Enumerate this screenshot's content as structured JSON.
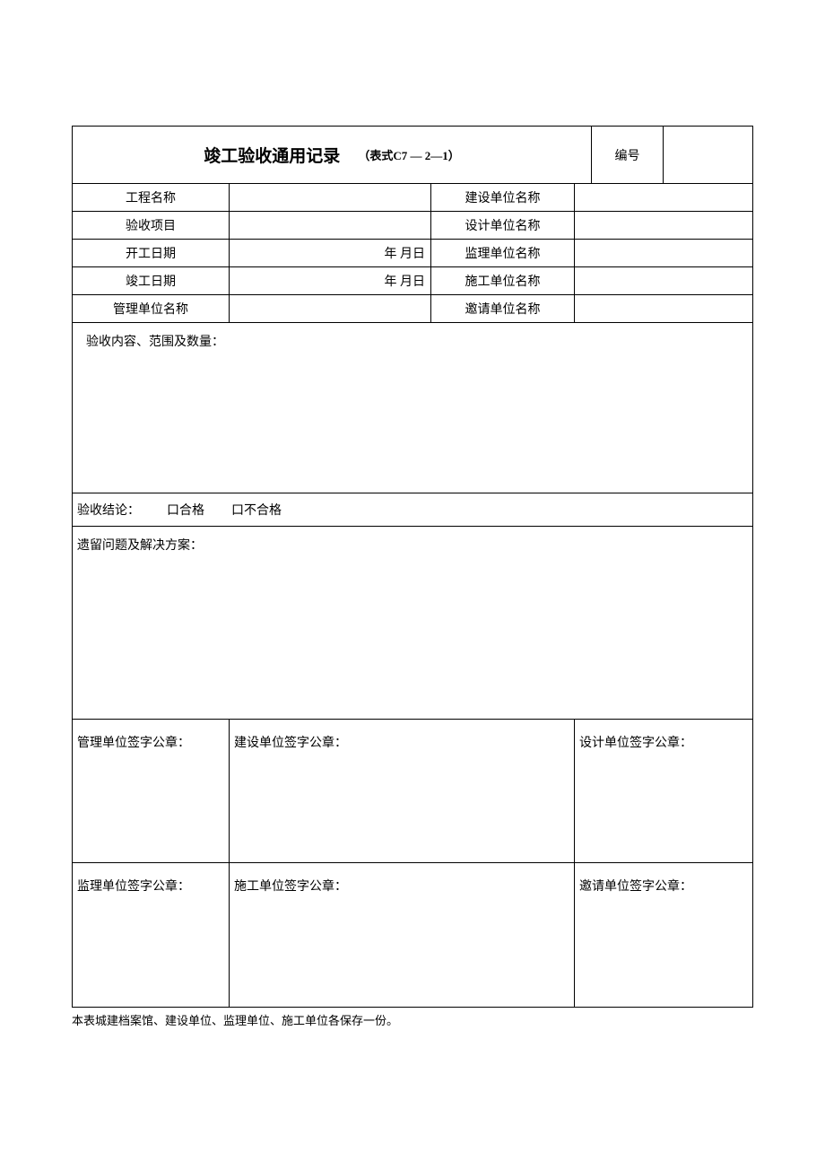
{
  "header": {
    "title_main": "竣工验收通用记录",
    "title_sub": "（表式C7 — 2—1）",
    "bianhao_label": "编号",
    "bianhao_value": ""
  },
  "info_rows": {
    "row1": {
      "label1": "工程名称",
      "value1": "",
      "label2": "建设单位名称",
      "value2": ""
    },
    "row2": {
      "label1": "验收项目",
      "value1": "",
      "label2": "设计单位名称",
      "value2": ""
    },
    "row3": {
      "label1": "开工日期",
      "value1": "年 月日",
      "label2": "监理单位名称",
      "value2": ""
    },
    "row4": {
      "label1": "竣工日期",
      "value1": "年 月日",
      "label2": "施工单位名称",
      "value2": ""
    },
    "row5": {
      "label1": "管理单位名称",
      "value1": "",
      "label2": "邀请单位名称",
      "value2": ""
    }
  },
  "sections": {
    "content_label": "验收内容、范围及数量：",
    "conclusion_label": "验收结论：",
    "conclusion_opt1": "口合格",
    "conclusion_opt2": "口不合格",
    "remaining_label": "遗留问题及解决方案："
  },
  "signatures": {
    "row1": {
      "cell1": "管理单位签字公章：",
      "cell2": "建设单位签字公章：",
      "cell3": "设计单位签字公章："
    },
    "row2": {
      "cell1": "监理单位签字公章：",
      "cell2": "施工单位签字公章：",
      "cell3": "邀请单位签字公章："
    }
  },
  "footer": "本表城建档案馆、建设单位、监理单位、施工单位各保存一份。",
  "styling": {
    "border_color": "#000000",
    "background_color": "#ffffff",
    "font_family": "SimSun",
    "title_fontsize": 19,
    "body_fontsize": 14,
    "footer_fontsize": 13
  }
}
